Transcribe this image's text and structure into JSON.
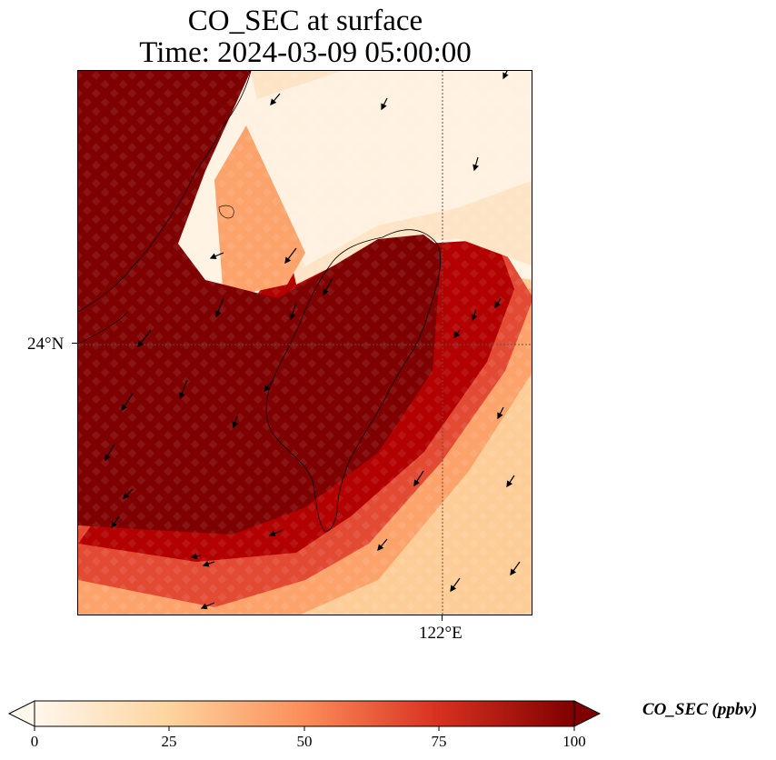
{
  "title": {
    "line1": "CO_SEC at surface",
    "line2": "Time: 2024-03-09 05:00:00"
  },
  "map": {
    "lat_label": "24°N",
    "lon_label": "122°E",
    "gridlines": "dotted",
    "coastline": "Taiwan and Fujian coast",
    "vector_field": "surface wind arrows (north-easterly)"
  },
  "colorbar": {
    "label": "CO_SEC (ppbv)",
    "ticks": [
      "0",
      "25",
      "50",
      "75",
      "100"
    ],
    "min": 0,
    "max": 100,
    "colormap": "OrRd",
    "extend": "both",
    "colors": [
      "#fff7ec",
      "#fdd49e",
      "#fc8d59",
      "#d7301f",
      "#7f0000"
    ]
  }
}
